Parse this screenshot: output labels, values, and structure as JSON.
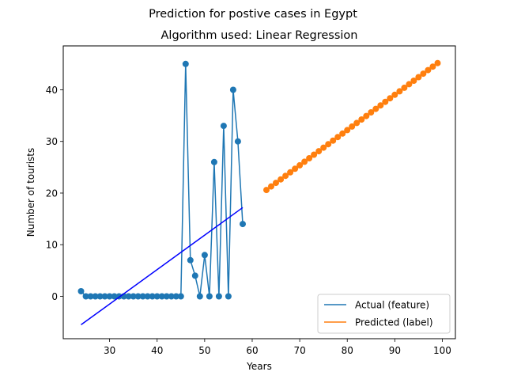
{
  "chart_data": {
    "type": "line",
    "suptitle": "Prediction for postive cases in Egypt",
    "title": "Algorithm used: Linear Regression",
    "xlabel": "Years",
    "ylabel": "Number of tourists",
    "xlim": [
      20.25,
      102.75
    ],
    "ylim": [
      -8.2,
      48.5
    ],
    "xticks": [
      30,
      40,
      50,
      60,
      70,
      80,
      90,
      100
    ],
    "yticks": [
      0,
      10,
      20,
      30,
      40
    ],
    "grid": false,
    "legend_position": "lower-right",
    "series": [
      {
        "name": "Actual (feature)",
        "color": "#1f77b4",
        "markers": true,
        "x": [
          24,
          25,
          26,
          27,
          28,
          29,
          30,
          31,
          32,
          33,
          34,
          35,
          36,
          37,
          38,
          39,
          40,
          41,
          42,
          43,
          44,
          45,
          46,
          47,
          48,
          49,
          50,
          51,
          52,
          53,
          54,
          55,
          56,
          57,
          58
        ],
        "y": [
          1,
          0,
          0,
          0,
          0,
          0,
          0,
          0,
          0,
          0,
          0,
          0,
          0,
          0,
          0,
          0,
          0,
          0,
          0,
          0,
          0,
          0,
          45,
          7,
          4,
          0,
          8,
          0,
          26,
          0,
          33,
          0,
          40,
          30,
          14
        ]
      },
      {
        "name": "Predicted (label)",
        "color": "#ff7f0e",
        "markers": true,
        "x": [
          63,
          64,
          65,
          66,
          67,
          68,
          69,
          70,
          71,
          72,
          73,
          74,
          75,
          76,
          77,
          78,
          79,
          80,
          81,
          82,
          83,
          84,
          85,
          86,
          87,
          88,
          89,
          90,
          91,
          92,
          93,
          94,
          95,
          96,
          97,
          98,
          99
        ],
        "y": [
          20.6,
          21.28,
          21.97,
          22.65,
          23.33,
          24.01,
          24.7,
          25.38,
          26.06,
          26.74,
          27.43,
          28.11,
          28.79,
          29.47,
          30.16,
          30.84,
          31.52,
          32.2,
          32.89,
          33.57,
          34.25,
          34.93,
          35.62,
          36.3,
          36.98,
          37.66,
          38.35,
          39.03,
          39.71,
          40.39,
          41.08,
          41.76,
          42.44,
          43.12,
          43.81,
          44.49,
          45.17
        ]
      },
      {
        "name": "",
        "color": "#0000ff",
        "markers": false,
        "x": [
          24,
          58
        ],
        "y": [
          -5.5,
          17.2
        ]
      }
    ]
  }
}
